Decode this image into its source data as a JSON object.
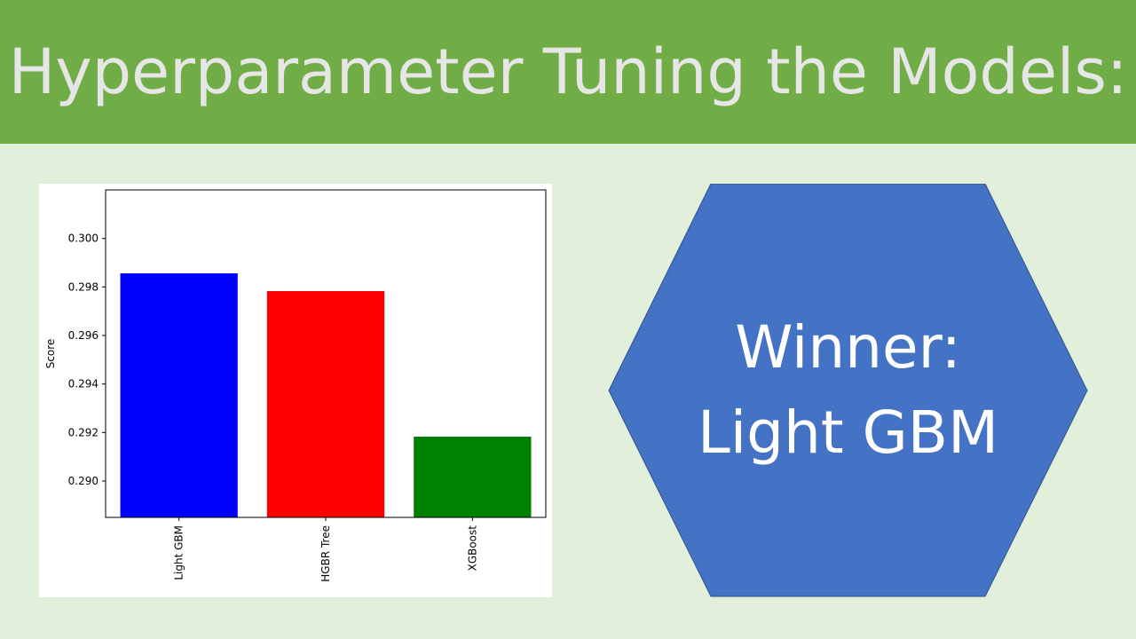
{
  "slide": {
    "title": "Hyperparameter Tuning the Models:",
    "winner_line1": "Winner:",
    "winner_line2": "Light GBM",
    "colors": {
      "header": "#70ad47",
      "background": "#e2efda",
      "title_text": "#e7e6e6",
      "hexagon": "#4472c4"
    }
  },
  "chart_data": {
    "type": "bar",
    "categories": [
      "Light GBM",
      "HGBR Tree",
      "XGBoost"
    ],
    "values": [
      0.29856,
      0.29783,
      0.29183
    ],
    "colors": [
      "#0000ff",
      "#ff0000",
      "#008000"
    ],
    "ylabel": "Score",
    "xlabel": "",
    "ylim": [
      0.2885,
      0.302
    ],
    "yticks": [
      0.29,
      0.292,
      0.294,
      0.296,
      0.298,
      0.3
    ],
    "ytick_labels": [
      "0.290",
      "0.292",
      "0.294",
      "0.296",
      "0.298",
      "0.300"
    ],
    "grid": false,
    "legend": "none"
  }
}
